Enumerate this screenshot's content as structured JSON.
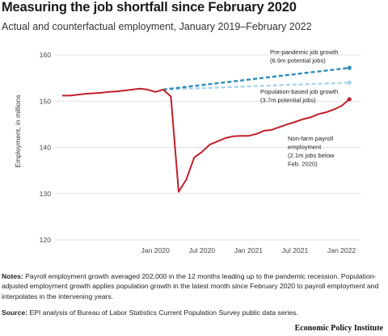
{
  "header": {
    "title": "Measuring the job shortfall since February 2020",
    "subtitle": "Actual and counterfactual employment, January 2019–February 2022"
  },
  "chart_data": {
    "type": "line",
    "title": "Measuring the job shortfall since February 2020",
    "subtitle": "Actual and counterfactual employment, January 2019–February 2022",
    "ylabel": "Employment, in millions",
    "xlabel": "",
    "ylim": [
      120,
      160
    ],
    "yticks": [
      120,
      130,
      140,
      150,
      160
    ],
    "xticks": [
      "Jan 2020",
      "Jul 2020",
      "Jan 2021",
      "Jul 2021",
      "Jan 2022"
    ],
    "grid": true,
    "series": [
      {
        "name": "Non-farm payroll employment",
        "color": "#c0202c",
        "style": "solid",
        "annotation": [
          "Non-farm payroll",
          "employment",
          "(2.1m jobs below",
          "Feb. 2020)"
        ],
        "x": [
          "2019-01",
          "2019-02",
          "2019-03",
          "2019-04",
          "2019-05",
          "2019-06",
          "2019-07",
          "2019-08",
          "2019-09",
          "2019-10",
          "2019-11",
          "2019-12",
          "2020-01",
          "2020-02",
          "2020-03",
          "2020-04",
          "2020-05",
          "2020-06",
          "2020-07",
          "2020-08",
          "2020-09",
          "2020-10",
          "2020-11",
          "2020-12",
          "2021-01",
          "2021-02",
          "2021-03",
          "2021-04",
          "2021-05",
          "2021-06",
          "2021-07",
          "2021-08",
          "2021-09",
          "2021-10",
          "2021-11",
          "2021-12",
          "2022-01",
          "2022-02"
        ],
        "values": [
          151.2,
          151.2,
          151.4,
          151.6,
          151.7,
          151.8,
          152.0,
          152.1,
          152.3,
          152.5,
          152.7,
          152.5,
          152.0,
          152.5,
          151.0,
          130.4,
          133.1,
          137.8,
          139.0,
          140.6,
          141.3,
          142.0,
          142.4,
          142.5,
          142.5,
          142.9,
          143.6,
          143.8,
          144.4,
          145.0,
          145.5,
          146.1,
          146.5,
          147.2,
          147.6,
          148.2,
          149.0,
          150.4
        ]
      },
      {
        "name": "Pre-pandemic job growth",
        "color": "#2f8bbd",
        "style": "dashed",
        "annotation": [
          "Pre-pandemic job growth",
          "(6.9m potential jobs)"
        ],
        "x": [
          "2020-02",
          "2022-02"
        ],
        "values": [
          152.5,
          157.2
        ]
      },
      {
        "name": "Population-based job growth",
        "color": "#a9d3ea",
        "style": "dashed",
        "annotation": [
          "Population-based job growth",
          "(3.7m potential jobs)"
        ],
        "x": [
          "2020-02",
          "2022-02"
        ],
        "values": [
          152.5,
          154.0
        ]
      }
    ]
  },
  "notes": {
    "label": "Notes:",
    "text": " Payroll employment growth averaged 202,000 in the 12 months leading up to the pandemic recession. Population-adjusted employment growth applies population growth in the latest month since February 2020 to payroll employment and interpolates in the intervening years."
  },
  "source": {
    "label": "Source:",
    "text": " EPI analysis of Bureau of Labor Statistics Current Population Survey public data series."
  },
  "logo": "Economic Policy Institute"
}
